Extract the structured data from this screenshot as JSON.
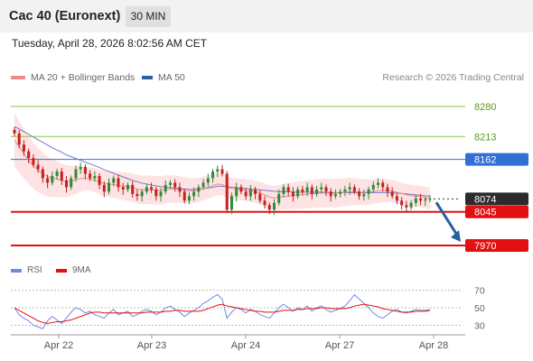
{
  "header": {
    "title": "Cac 40 (Euronext)",
    "timeframe": "30 MIN"
  },
  "timestamp": "Tuesday, April 28, 2026 8:02:56 AM CET",
  "legend": {
    "ma20_label": "MA 20 + Bollinger Bands",
    "ma50_label": "MA 50",
    "copyright": "Research © 2026 Trading Central"
  },
  "rsi_legend": {
    "rsi_label": "RSI",
    "ma_label": "9MA"
  },
  "colors": {
    "bollinger_fill": "#fde3e3",
    "ma20": "#f08a8a",
    "ma50": "#7a78c6",
    "level_green": "#8bc34a",
    "level_blue": "#2f6fd6",
    "level_red": "#e21010",
    "candle_up": "#2e8b3a",
    "candle_down": "#c62020",
    "rsi": "#6f8be0",
    "rsi_ma": "#e21010",
    "arrow": "#2a5f9e"
  },
  "chart_data": [
    {
      "type": "candlestick",
      "instrument": "Cac 40 (Euronext)",
      "interval": "30 MIN",
      "x_ticks": [
        "Apr 22",
        "Apr 23",
        "Apr 24",
        "Apr 27",
        "Apr 28"
      ],
      "ylim": [
        7958,
        8300
      ],
      "levels": [
        {
          "value": 8280,
          "label": "8280",
          "style": "resistance-green"
        },
        {
          "value": 8213,
          "label": "8213",
          "style": "resistance-green"
        },
        {
          "value": 8162,
          "label": "8162",
          "style": "pivot-blue"
        },
        {
          "value": 8074,
          "label": "8074",
          "style": "last-price"
        },
        {
          "value": 8045,
          "label": "8045",
          "style": "support-red"
        },
        {
          "value": 7970,
          "label": "7970",
          "style": "support-red"
        }
      ],
      "last_price": 8074,
      "forecast_arrow": {
        "from": 8074,
        "to": 7970,
        "direction": "down"
      },
      "close_series": [
        8220,
        8195,
        8180,
        8165,
        8150,
        8140,
        8120,
        8110,
        8125,
        8135,
        8115,
        8100,
        8120,
        8140,
        8145,
        8130,
        8120,
        8125,
        8105,
        8090,
        8110,
        8120,
        8100,
        8095,
        8105,
        8085,
        8080,
        8090,
        8100,
        8095,
        8080,
        8090,
        8105,
        8110,
        8100,
        8090,
        8070,
        8080,
        8090,
        8100,
        8110,
        8120,
        8135,
        8140,
        8130,
        8050,
        8080,
        8100,
        8090,
        8080,
        8095,
        8085,
        8070,
        8060,
        8050,
        8065,
        8085,
        8100,
        8090,
        8080,
        8095,
        8090,
        8100,
        8085,
        8095,
        8100,
        8090,
        8080,
        8085,
        8090,
        8095,
        8100,
        8090,
        8080,
        8085,
        8095,
        8105,
        8110,
        8100,
        8090,
        8080,
        8070,
        8060,
        8055,
        8065,
        8075,
        8070,
        8072,
        8074
      ],
      "ma20_series": [
        8205,
        8190,
        8175,
        8160,
        8148,
        8138,
        8130,
        8124,
        8120,
        8118,
        8115,
        8113,
        8114,
        8117,
        8119,
        8120,
        8118,
        8116,
        8112,
        8108,
        8107,
        8106,
        8104,
        8102,
        8101,
        8099,
        8096,
        8094,
        8094,
        8094,
        8093,
        8093,
        8095,
        8096,
        8096,
        8095,
        8093,
        8092,
        8092,
        8094,
        8097,
        8100,
        8104,
        8107,
        8106,
        8100,
        8097,
        8096,
        8095,
        8093,
        8092,
        8090,
        8087,
        8083,
        8078,
        8076,
        8077,
        8079,
        8080,
        8081,
        8082,
        8083,
        8085,
        8085,
        8086,
        8087,
        8087,
        8087,
        8087,
        8088,
        8089,
        8090,
        8090,
        8089,
        8089,
        8089,
        8090,
        8092,
        8093,
        8092,
        8091,
        8089,
        8086,
        8083,
        8081,
        8080,
        8079,
        8077,
        8075
      ],
      "ma50_series": [
        8235,
        8230,
        8224,
        8218,
        8212,
        8206,
        8200,
        8194,
        8188,
        8183,
        8178,
        8172,
        8168,
        8164,
        8160,
        8156,
        8152,
        8148,
        8144,
        8139,
        8135,
        8131,
        8127,
        8123,
        8119,
        8115,
        8112,
        8109,
        8107,
        8105,
        8103,
        8101,
        8100,
        8099,
        8098,
        8097,
        8096,
        8095,
        8095,
        8096,
        8097,
        8098,
        8100,
        8102,
        8102,
        8101,
        8100,
        8099,
        8098,
        8097,
        8096,
        8095,
        8094,
        8093,
        8092,
        8091,
        8090,
        8090,
        8090,
        8089,
        8089,
        8089,
        8089,
        8089,
        8089,
        8089,
        8088,
        8088,
        8088,
        8088,
        8088,
        8088,
        8088,
        8088,
        8088,
        8088,
        8088,
        8088,
        8088,
        8088,
        8087,
        8087,
        8086,
        8085,
        8084,
        8083,
        8082,
        8081,
        8080
      ]
    },
    {
      "type": "line",
      "name": "RSI",
      "yticks": [
        70,
        50,
        30
      ],
      "ylim": [
        20,
        80
      ],
      "rsi_series": [
        50,
        42,
        38,
        35,
        30,
        28,
        26,
        35,
        40,
        36,
        32,
        38,
        45,
        50,
        48,
        44,
        46,
        42,
        40,
        38,
        44,
        48,
        42,
        44,
        46,
        40,
        42,
        46,
        48,
        46,
        42,
        45,
        50,
        52,
        48,
        45,
        40,
        44,
        47,
        50,
        55,
        58,
        62,
        65,
        60,
        38,
        45,
        50,
        48,
        44,
        48,
        46,
        42,
        40,
        38,
        44,
        50,
        54,
        50,
        46,
        50,
        48,
        52,
        46,
        50,
        52,
        48,
        45,
        47,
        49,
        52,
        58,
        65,
        60,
        55,
        50,
        44,
        40,
        38,
        42,
        46,
        48,
        45,
        44,
        46,
        48,
        47,
        47,
        48
      ],
      "ma9_series": [
        50,
        47,
        44,
        41,
        38,
        35,
        33,
        32,
        33,
        34,
        34,
        35,
        36,
        38,
        40,
        42,
        44,
        45,
        45,
        44,
        44,
        44,
        44,
        44,
        44,
        44,
        44,
        44,
        45,
        45,
        45,
        45,
        46,
        46,
        47,
        47,
        46,
        46,
        46,
        46,
        47,
        49,
        51,
        53,
        54,
        52,
        51,
        50,
        49,
        48,
        47,
        46,
        46,
        45,
        45,
        45,
        46,
        47,
        47,
        47,
        48,
        48,
        49,
        49,
        49,
        50,
        50,
        49,
        49,
        49,
        49,
        50,
        52,
        53,
        54,
        53,
        52,
        51,
        49,
        48,
        47,
        46,
        45,
        45,
        45,
        46,
        46,
        46,
        47
      ]
    }
  ]
}
